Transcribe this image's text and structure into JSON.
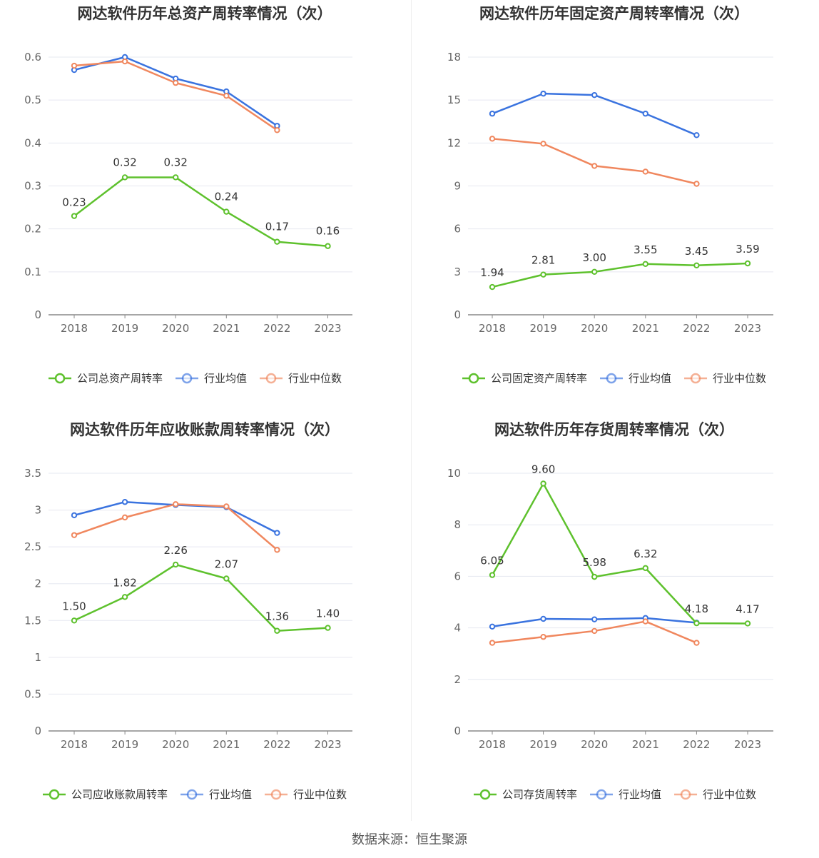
{
  "colors": {
    "company": "#5ec12d",
    "avg": "#3a73df",
    "median": "#f0875e",
    "grid": "#e6e8f0",
    "axis": "#888888"
  },
  "chart_data": [
    {
      "type": "line",
      "title": "网达软件历年总资产周转率情况（次）",
      "categories": [
        "2018",
        "2019",
        "2020",
        "2021",
        "2022",
        "2023"
      ],
      "ylim": [
        0,
        0.6
      ],
      "yticks": [
        "0",
        "0.1",
        "0.2",
        "0.3",
        "0.4",
        "0.5",
        "0.6"
      ],
      "grid": true,
      "legend_position": "bottom",
      "series": [
        {
          "name": "公司总资产周转率",
          "values": [
            0.23,
            0.32,
            0.32,
            0.24,
            0.17,
            0.16
          ],
          "labels": [
            "0.23",
            "0.32",
            "0.32",
            "0.24",
            "0.17",
            "0.16"
          ]
        },
        {
          "name": "行业均值",
          "values": [
            0.57,
            0.6,
            0.55,
            0.52,
            0.44,
            null
          ]
        },
        {
          "name": "行业中位数",
          "values": [
            0.58,
            0.59,
            0.54,
            0.51,
            0.43,
            null
          ]
        }
      ]
    },
    {
      "type": "line",
      "title": "网达软件历年固定资产周转率情况（次）",
      "categories": [
        "2018",
        "2019",
        "2020",
        "2021",
        "2022",
        "2023"
      ],
      "ylim": [
        0,
        18
      ],
      "yticks": [
        "0",
        "3",
        "6",
        "9",
        "12",
        "15",
        "18"
      ],
      "grid": true,
      "legend_position": "bottom",
      "series": [
        {
          "name": "公司固定资产周转率",
          "values": [
            1.94,
            2.81,
            3.0,
            3.55,
            3.45,
            3.59
          ],
          "labels": [
            "1.94",
            "2.81",
            "3.00",
            "3.55",
            "3.45",
            "3.59"
          ]
        },
        {
          "name": "行业均值",
          "values": [
            14.05,
            15.45,
            15.35,
            14.05,
            12.55,
            null
          ]
        },
        {
          "name": "行业中位数",
          "values": [
            12.3,
            11.95,
            10.4,
            10.0,
            9.15,
            null
          ]
        }
      ]
    },
    {
      "type": "line",
      "title": "网达软件历年应收账款周转率情况（次）",
      "categories": [
        "2018",
        "2019",
        "2020",
        "2021",
        "2022",
        "2023"
      ],
      "ylim": [
        0,
        3.5
      ],
      "yticks": [
        "0",
        "0.5",
        "1",
        "1.5",
        "2",
        "2.5",
        "3",
        "3.5"
      ],
      "grid": true,
      "legend_position": "bottom",
      "series": [
        {
          "name": "公司应收账款周转率",
          "values": [
            1.5,
            1.82,
            2.26,
            2.07,
            1.36,
            1.4
          ],
          "labels": [
            "1.50",
            "1.82",
            "2.26",
            "2.07",
            "1.36",
            "1.40"
          ]
        },
        {
          "name": "行业均值",
          "values": [
            2.93,
            3.11,
            3.07,
            3.04,
            2.69,
            null
          ]
        },
        {
          "name": "行业中位数",
          "values": [
            2.66,
            2.9,
            3.08,
            3.05,
            2.46,
            null
          ]
        }
      ]
    },
    {
      "type": "line",
      "title": "网达软件历年存货周转率情况（次）",
      "categories": [
        "2018",
        "2019",
        "2020",
        "2021",
        "2022",
        "2023"
      ],
      "ylim": [
        0,
        10
      ],
      "yticks": [
        "0",
        "2",
        "4",
        "6",
        "8",
        "10"
      ],
      "grid": true,
      "legend_position": "bottom",
      "series": [
        {
          "name": "公司存货周转率",
          "values": [
            6.05,
            9.6,
            5.98,
            6.32,
            4.18,
            4.17
          ],
          "labels": [
            "6.05",
            "9.60",
            "5.98",
            "6.32",
            "4.18",
            "4.17"
          ]
        },
        {
          "name": "行业均值",
          "values": [
            4.05,
            4.35,
            4.33,
            4.38,
            4.2,
            null
          ]
        },
        {
          "name": "行业中位数",
          "values": [
            3.42,
            3.65,
            3.88,
            4.25,
            3.42,
            null
          ]
        }
      ]
    }
  ],
  "source_text": "数据来源：恒生聚源"
}
